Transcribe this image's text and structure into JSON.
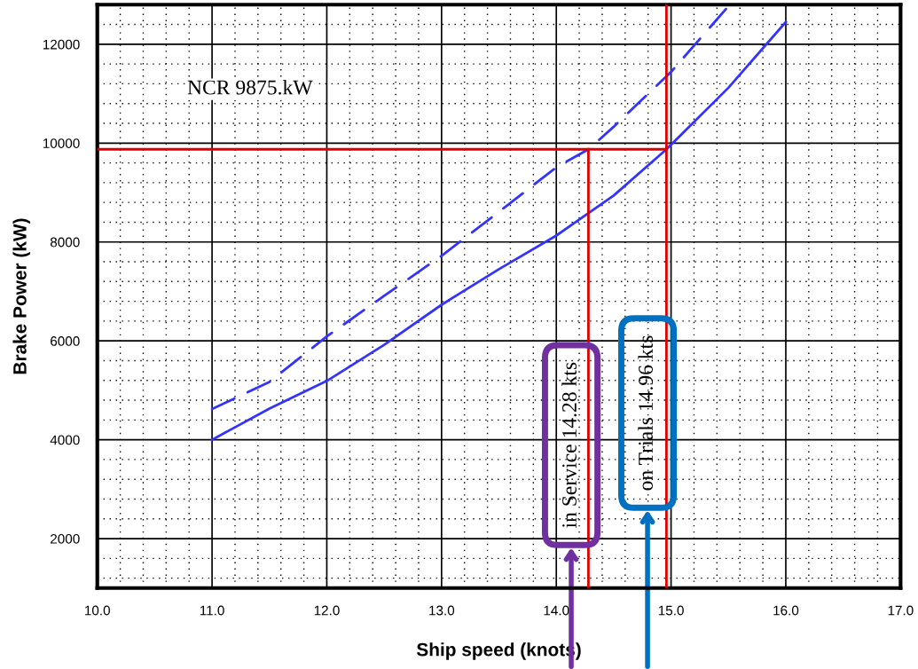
{
  "chart_data": {
    "type": "line",
    "xlabel": "Ship speed (knots)",
    "ylabel": "Brake Power (kW)",
    "xlim": [
      10,
      17
    ],
    "ylim": [
      1000,
      12800
    ],
    "xticks": [
      {
        "value": 10,
        "label": "10.0"
      },
      {
        "value": 11,
        "label": "11.0"
      },
      {
        "value": 12,
        "label": "12.0"
      },
      {
        "value": 13,
        "label": "13.0"
      },
      {
        "value": 14,
        "label": "14.0"
      },
      {
        "value": 15,
        "label": "15.0"
      },
      {
        "value": 16,
        "label": "16.0"
      },
      {
        "value": 17,
        "label": "17.0"
      }
    ],
    "yticks": [
      2000,
      4000,
      6000,
      8000,
      10000,
      12000
    ],
    "grid": true,
    "series": [
      {
        "color": "#3333ff",
        "line_style": "solid",
        "x": [
          11,
          11.5,
          12,
          12.5,
          13,
          13.5,
          14,
          14.5,
          14.96,
          15.5,
          16
        ],
        "values": [
          4000,
          4630,
          5190,
          5920,
          6730,
          7450,
          8130,
          8940,
          9875,
          11120,
          12450
        ]
      },
      {
        "color": "#3333ff",
        "line_style": "dashed",
        "x": [
          11,
          11.5,
          12,
          12.5,
          13,
          13.5,
          14,
          14.28,
          14.5,
          15,
          15.5
        ],
        "values": [
          4620,
          5170,
          6090,
          6910,
          7720,
          8610,
          9510,
          9875,
          10330,
          11440,
          12770
        ]
      },
      {
        "color": "#dd0000",
        "line_style": "solid",
        "x": [
          10,
          14.96
        ],
        "values": [
          9875,
          9875
        ]
      },
      {
        "color": "#dd0000",
        "line_style": "solid",
        "x": [
          14.28,
          14.28
        ],
        "values": [
          1000,
          9875
        ]
      }
    ],
    "ref_lines": [
      {
        "axis": "x",
        "value": 14.96,
        "color": "#dd0000"
      }
    ],
    "annotations": [
      "NCR 9875.kW",
      "in Service 14.28 kts",
      "on Trials 14.96 kts"
    ]
  }
}
